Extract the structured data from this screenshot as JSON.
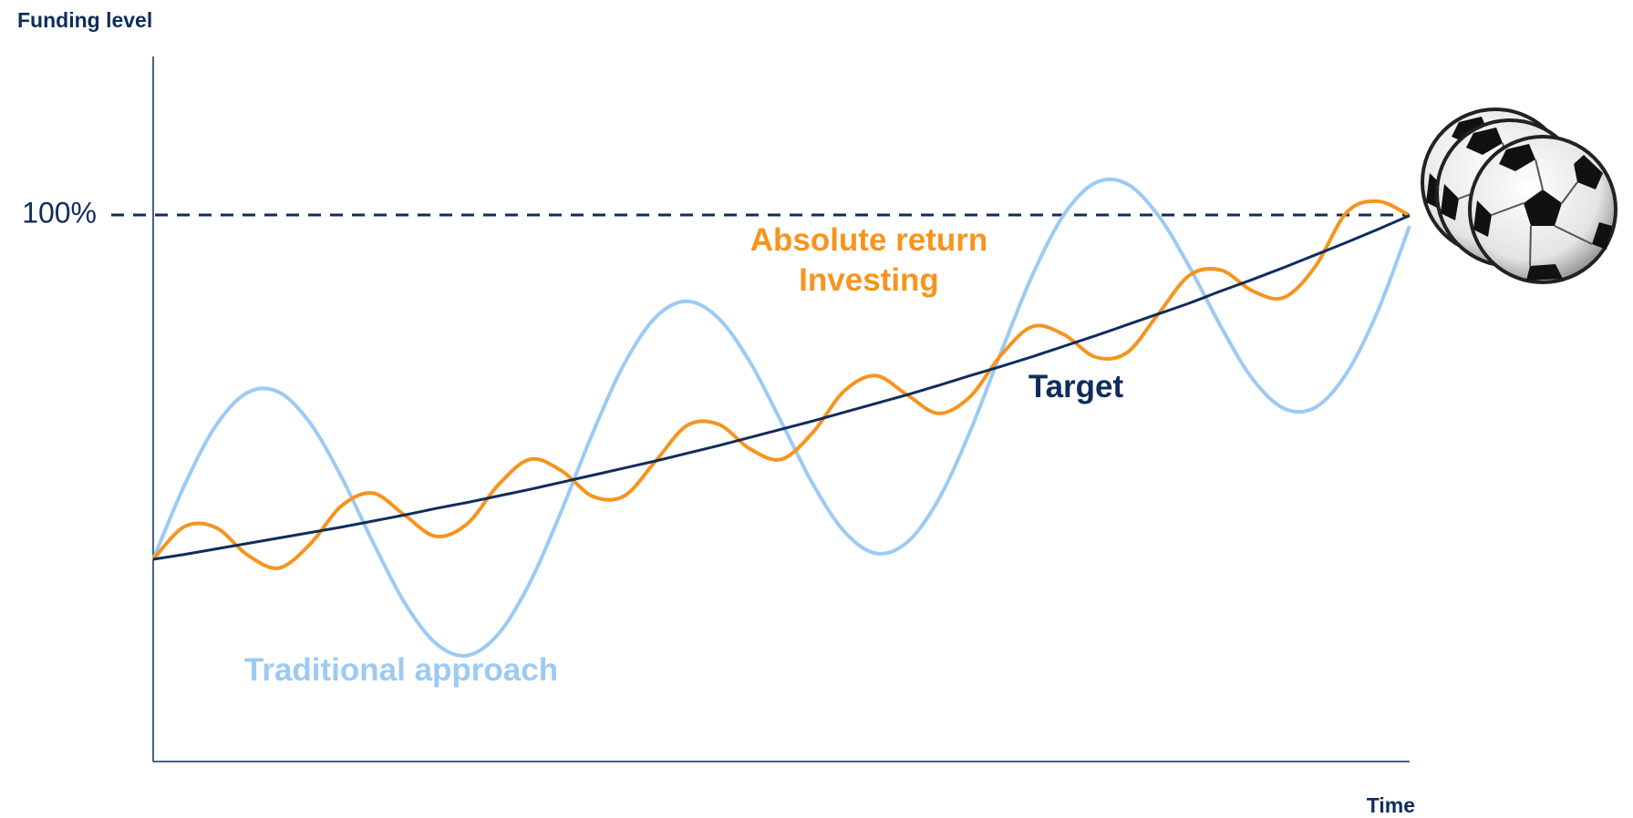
{
  "chart_data": {
    "type": "line",
    "y_label": "Funding level",
    "x_label": "Time",
    "categories": [
      null,
      null,
      null,
      null,
      null,
      null,
      null,
      null,
      null,
      null,
      null,
      null,
      null,
      null,
      null,
      null,
      null,
      null,
      null,
      null,
      null,
      null,
      null,
      null,
      null,
      null,
      null,
      null,
      null,
      null,
      null,
      null,
      null,
      null,
      null,
      null,
      null,
      null,
      null,
      null,
      null
    ],
    "ylim": [
      0,
      129
    ],
    "yticks": [
      {
        "value": 100,
        "label": "100%"
      }
    ],
    "grid": true,
    "series": [
      {
        "name": "Traditional approach",
        "color": "#9ccaf3",
        "values": [
          37.0,
          50.6,
          61.5,
          67.5,
          67.6,
          61.9,
          52.0,
          40.1,
          29.1,
          21.6,
          19.4,
          23.4,
          32.8,
          45.9,
          60.2,
          72.8,
          81.3,
          84.2,
          81.1,
          73.1,
          62.1,
          50.8,
          42.1,
          38.1,
          40.1,
          47.9,
          60.3,
          75.0,
          89.1,
          100.1,
          105.9,
          105.7,
          99.9,
          90.4,
          79.5,
          70.0,
          64.6,
          64.8,
          71.1,
          82.6,
          98.0
        ]
      },
      {
        "name": "Absolute return Investing",
        "color": "#f7941d",
        "values": [
          37.0,
          43.0,
          42.8,
          37.8,
          35.4,
          39.8,
          46.8,
          49.1,
          45.1,
          41.2,
          43.5,
          50.7,
          55.3,
          53.2,
          48.5,
          48.6,
          55.0,
          61.5,
          61.7,
          57.2,
          55.3,
          60.2,
          67.8,
          70.6,
          67.1,
          63.7,
          66.7,
          74.4,
          79.6,
          78.1,
          74.0,
          74.8,
          81.9,
          89.0,
          89.9,
          86.1,
          84.9,
          90.6,
          100.5,
          102.5,
          99.9
        ]
      },
      {
        "name": "Target",
        "color": "#0f2d5c",
        "values": [
          37.0,
          37.9,
          38.9,
          39.9,
          40.9,
          41.9,
          42.9,
          44.0,
          45.1,
          46.3,
          47.4,
          48.6,
          49.8,
          51.1,
          52.4,
          53.7,
          55.0,
          56.4,
          57.8,
          59.3,
          60.8,
          62.3,
          63.9,
          65.5,
          67.1,
          68.8,
          70.6,
          72.3,
          74.1,
          76.0,
          77.9,
          79.9,
          81.9,
          83.9,
          86.1,
          88.2,
          90.4,
          92.7,
          95.0,
          97.4,
          99.9
        ]
      }
    ]
  }
}
